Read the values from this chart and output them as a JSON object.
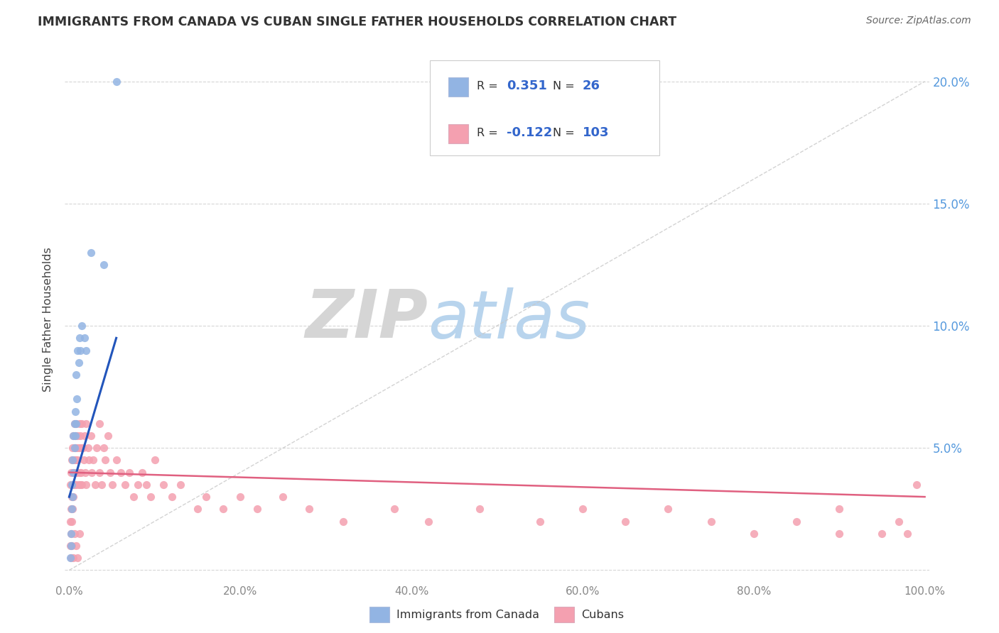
{
  "title": "IMMIGRANTS FROM CANADA VS CUBAN SINGLE FATHER HOUSEHOLDS CORRELATION CHART",
  "source": "Source: ZipAtlas.com",
  "ylabel": "Single Father Households",
  "legend_label1": "Immigrants from Canada",
  "legend_label2": "Cubans",
  "legend_R1": "0.351",
  "legend_N1": "26",
  "legend_R2": "-0.122",
  "legend_N2": "103",
  "color_canada": "#92b4e3",
  "color_cubans": "#f4a0b0",
  "color_trend_canada": "#2255bb",
  "color_trend_cubans": "#e06080",
  "color_diagonal": "#c8c8c8",
  "canada_x": [
    0.001,
    0.002,
    0.002,
    0.003,
    0.003,
    0.004,
    0.004,
    0.005,
    0.005,
    0.006,
    0.006,
    0.007,
    0.007,
    0.008,
    0.008,
    0.009,
    0.01,
    0.011,
    0.012,
    0.013,
    0.015,
    0.018,
    0.02,
    0.025,
    0.04,
    0.055
  ],
  "canada_y": [
    0.005,
    0.01,
    0.015,
    0.025,
    0.035,
    0.03,
    0.045,
    0.04,
    0.055,
    0.05,
    0.06,
    0.055,
    0.065,
    0.06,
    0.08,
    0.07,
    0.09,
    0.085,
    0.095,
    0.09,
    0.1,
    0.095,
    0.09,
    0.13,
    0.125,
    0.2
  ],
  "cubans_x": [
    0.001,
    0.001,
    0.001,
    0.002,
    0.002,
    0.002,
    0.003,
    0.003,
    0.003,
    0.004,
    0.004,
    0.004,
    0.005,
    0.005,
    0.005,
    0.006,
    0.006,
    0.006,
    0.007,
    0.007,
    0.007,
    0.008,
    0.008,
    0.008,
    0.009,
    0.009,
    0.01,
    0.01,
    0.011,
    0.011,
    0.012,
    0.012,
    0.013,
    0.013,
    0.014,
    0.014,
    0.015,
    0.015,
    0.016,
    0.017,
    0.018,
    0.019,
    0.02,
    0.02,
    0.022,
    0.023,
    0.025,
    0.026,
    0.028,
    0.03,
    0.032,
    0.035,
    0.035,
    0.038,
    0.04,
    0.042,
    0.045,
    0.048,
    0.05,
    0.055,
    0.06,
    0.065,
    0.07,
    0.075,
    0.08,
    0.085,
    0.09,
    0.095,
    0.1,
    0.11,
    0.12,
    0.13,
    0.15,
    0.16,
    0.18,
    0.2,
    0.22,
    0.25,
    0.28,
    0.32,
    0.38,
    0.42,
    0.48,
    0.55,
    0.6,
    0.65,
    0.7,
    0.75,
    0.8,
    0.85,
    0.9,
    0.9,
    0.95,
    0.97,
    0.98,
    0.99,
    0.002,
    0.003,
    0.005,
    0.006,
    0.008,
    0.01,
    0.012
  ],
  "cubans_y": [
    0.02,
    0.01,
    0.035,
    0.025,
    0.015,
    0.04,
    0.03,
    0.02,
    0.045,
    0.035,
    0.025,
    0.05,
    0.04,
    0.03,
    0.055,
    0.045,
    0.035,
    0.06,
    0.05,
    0.04,
    0.055,
    0.045,
    0.035,
    0.06,
    0.05,
    0.04,
    0.055,
    0.045,
    0.05,
    0.035,
    0.06,
    0.04,
    0.055,
    0.035,
    0.05,
    0.04,
    0.06,
    0.035,
    0.05,
    0.045,
    0.055,
    0.04,
    0.06,
    0.035,
    0.05,
    0.045,
    0.055,
    0.04,
    0.045,
    0.035,
    0.05,
    0.04,
    0.06,
    0.035,
    0.05,
    0.045,
    0.055,
    0.04,
    0.035,
    0.045,
    0.04,
    0.035,
    0.04,
    0.03,
    0.035,
    0.04,
    0.035,
    0.03,
    0.045,
    0.035,
    0.03,
    0.035,
    0.025,
    0.03,
    0.025,
    0.03,
    0.025,
    0.03,
    0.025,
    0.02,
    0.025,
    0.02,
    0.025,
    0.02,
    0.025,
    0.02,
    0.025,
    0.02,
    0.015,
    0.02,
    0.015,
    0.025,
    0.015,
    0.02,
    0.015,
    0.035,
    0.005,
    0.01,
    0.005,
    0.015,
    0.01,
    0.005,
    0.015
  ],
  "xlim": [
    0.0,
    1.0
  ],
  "ylim": [
    0.0,
    0.21
  ],
  "xtick_vals": [
    0.0,
    0.2,
    0.4,
    0.6,
    0.8,
    1.0
  ],
  "xtick_labels": [
    "0.0%",
    "20.0%",
    "40.0%",
    "60.0%",
    "80.0%",
    "100.0%"
  ],
  "ytick_vals": [
    0.0,
    0.05,
    0.1,
    0.15,
    0.2
  ],
  "ytick_labels": [
    "",
    "5.0%",
    "10.0%",
    "15.0%",
    "20.0%"
  ],
  "canada_trend_x0": 0.0,
  "canada_trend_y0": 0.03,
  "canada_trend_x1": 0.055,
  "canada_trend_y1": 0.095,
  "cubans_trend_x0": 0.0,
  "cubans_trend_y0": 0.04,
  "cubans_trend_x1": 1.0,
  "cubans_trend_y1": 0.03
}
